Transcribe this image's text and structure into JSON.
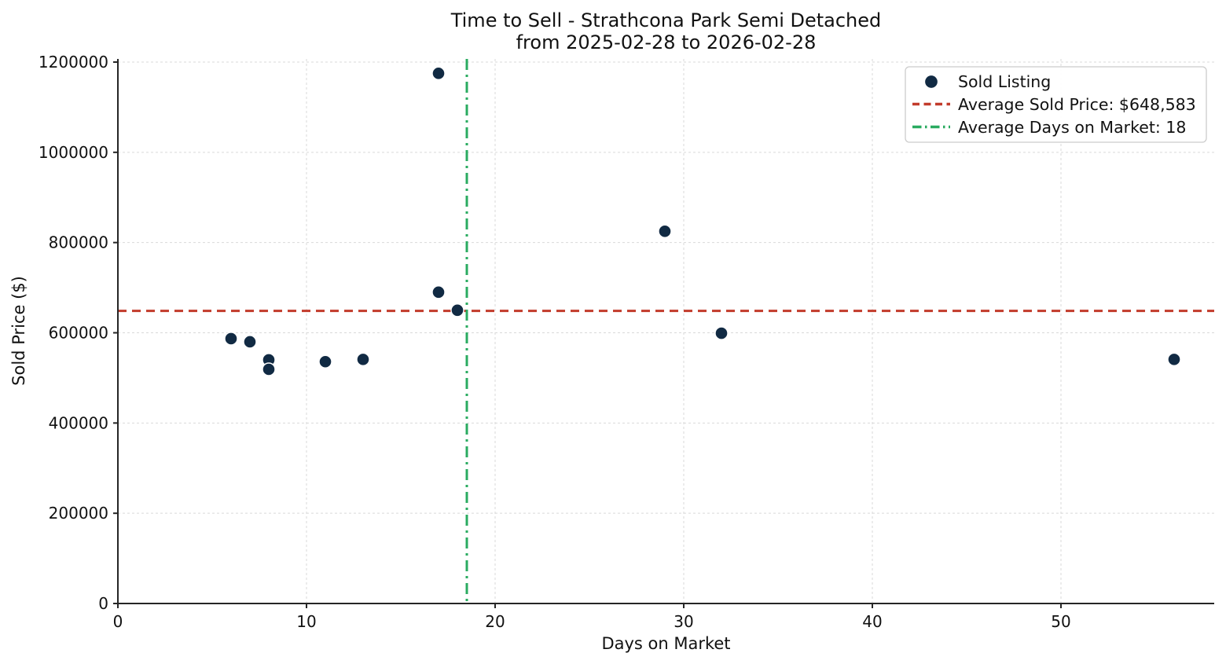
{
  "title": {
    "line1": "Time to Sell - Strathcona Park Semi Detached",
    "line2": "from 2025-02-28 to 2026-02-28"
  },
  "chart_data": {
    "type": "scatter",
    "title": "Time to Sell - Strathcona Park Semi Detached\nfrom 2025-02-28 to 2026-02-28",
    "xlabel": "Days on Market",
    "ylabel": "Sold Price ($)",
    "xlim": [
      0,
      58.125
    ],
    "ylim": [
      0,
      1206968
    ],
    "x_ticks": [
      0,
      10,
      20,
      30,
      40,
      50
    ],
    "y_ticks": [
      0,
      200000,
      400000,
      600000,
      800000,
      1000000,
      1200000
    ],
    "grid": true,
    "grid_style": "dashed",
    "legend_position": "upper right",
    "series": [
      {
        "name": "Sold Listing",
        "type": "scatter",
        "color": "#112a43",
        "marker_edge_color": "#ffffff",
        "points": [
          {
            "days_on_market": 6,
            "sold_price": 587000
          },
          {
            "days_on_market": 7,
            "sold_price": 580000
          },
          {
            "days_on_market": 8,
            "sold_price": 540000
          },
          {
            "days_on_market": 8,
            "sold_price": 519000
          },
          {
            "days_on_market": 11,
            "sold_price": 536000
          },
          {
            "days_on_market": 13,
            "sold_price": 541000
          },
          {
            "days_on_market": 17,
            "sold_price": 690000
          },
          {
            "days_on_market": 17,
            "sold_price": 1175000
          },
          {
            "days_on_market": 18,
            "sold_price": 650000
          },
          {
            "days_on_market": 29,
            "sold_price": 825000
          },
          {
            "days_on_market": 32,
            "sold_price": 599000
          },
          {
            "days_on_market": 56,
            "sold_price": 541000
          }
        ]
      }
    ],
    "avg_price_line": {
      "label": "Average Sold Price: $648,583",
      "value": 648583,
      "orientation": "horizontal",
      "style": "dashed",
      "color": "#c23b2b"
    },
    "avg_days_line": {
      "label": "Average Days on Market: 18",
      "value": 18.5,
      "display_value": 18,
      "orientation": "vertical",
      "style": "dashdot",
      "color": "#2aab60"
    },
    "legend": {
      "items": [
        {
          "label": "Sold Listing"
        },
        {
          "label": "Average Sold Price: $648,583"
        },
        {
          "label": "Average Days on Market: 18"
        }
      ]
    },
    "colors": {
      "point": "#112a43",
      "avg_price": "#c23b2b",
      "avg_days": "#2aab60",
      "grid": "#d9d9d9",
      "spine": "#262626",
      "legend_border": "#cccccc",
      "background": "#ffffff"
    }
  }
}
